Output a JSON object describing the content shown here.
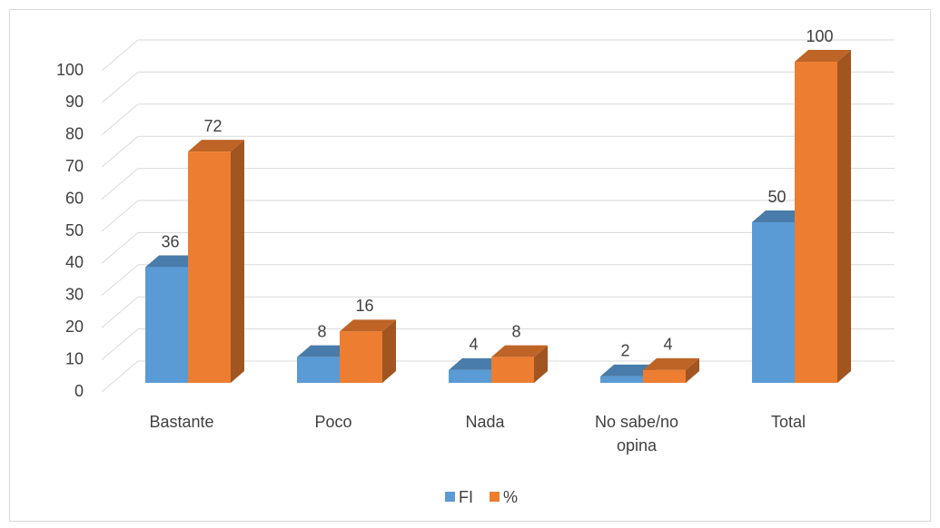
{
  "chart_data": {
    "type": "bar3d",
    "categories": [
      "Bastante",
      "Poco",
      "Nada",
      "No sabe/no opina",
      "Total"
    ],
    "series": [
      {
        "name": "FI",
        "color": "#5b9bd5",
        "values": [
          36,
          8,
          4,
          2,
          50
        ]
      },
      {
        "name": "%",
        "color": "#ed7d31",
        "values": [
          72,
          16,
          8,
          4,
          100
        ]
      }
    ],
    "ylim": [
      0,
      100
    ],
    "yticks": [
      0,
      10,
      20,
      30,
      40,
      50,
      60,
      70,
      80,
      90,
      100
    ],
    "grid": true,
    "legend": "bottom"
  }
}
